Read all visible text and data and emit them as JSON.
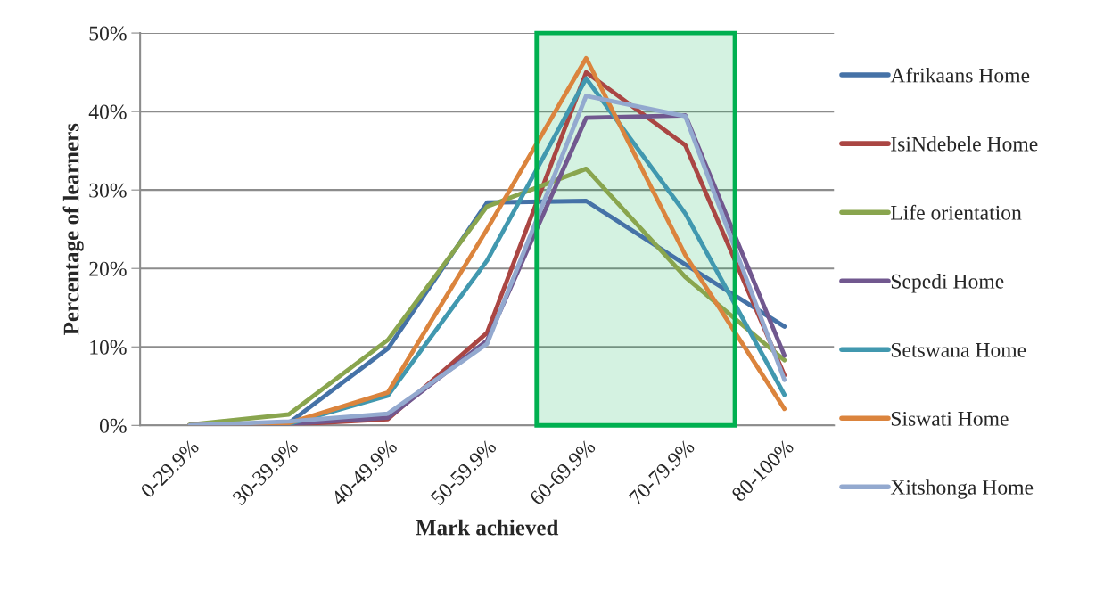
{
  "chart_data": {
    "type": "line",
    "xlabel": "Mark achieved",
    "ylabel": "Percentage of learners",
    "categories": [
      "0-29.9%",
      "30-39.9%",
      "40-49.9%",
      "50-59.9%",
      "60-69.9%",
      "70-79.9%",
      "80-100%"
    ],
    "series": [
      {
        "name": "Afrikaans Home",
        "color": "#4572a7",
        "values": [
          0,
          0.3,
          9.8,
          28.4,
          28.6,
          20.5,
          12.6
        ]
      },
      {
        "name": "IsiNdebele Home",
        "color": "#aa4643",
        "values": [
          0,
          0.1,
          0.8,
          11.8,
          45.0,
          35.7,
          6.4
        ]
      },
      {
        "name": "Life orientation",
        "color": "#89a54e",
        "values": [
          0.1,
          1.4,
          10.9,
          27.9,
          32.7,
          18.9,
          8.3
        ]
      },
      {
        "name": "Sepedi Home",
        "color": "#71588f",
        "values": [
          0,
          0.2,
          1.0,
          10.8,
          39.2,
          39.5,
          8.9
        ]
      },
      {
        "name": "Setswana Home",
        "color": "#4198af",
        "values": [
          0,
          0.2,
          3.8,
          21.0,
          44.2,
          27.0,
          3.9
        ]
      },
      {
        "name": "Siswati Home",
        "color": "#db843d",
        "values": [
          0,
          0.3,
          4.2,
          25.0,
          46.8,
          21.7,
          2.1
        ]
      },
      {
        "name": "Xitshonga Home",
        "color": "#93a9cf",
        "values": [
          0,
          0.5,
          1.5,
          10.4,
          42.0,
          39.4,
          5.8
        ]
      }
    ],
    "ylim": [
      0,
      50
    ],
    "yticks": [
      {
        "value": 0,
        "label": "0%"
      },
      {
        "value": 10,
        "label": "10%"
      },
      {
        "value": 20,
        "label": "20%"
      },
      {
        "value": 30,
        "label": "30%"
      },
      {
        "value": 40,
        "label": "40%"
      },
      {
        "value": 50,
        "label": "50%"
      }
    ],
    "bands": [
      {
        "axis": "x",
        "from": "60-69.9%",
        "to": "70-79.9%",
        "color": "#00b050"
      }
    ],
    "grid": "y",
    "legend": "right",
    "marker": "none",
    "line_style": "solid"
  }
}
